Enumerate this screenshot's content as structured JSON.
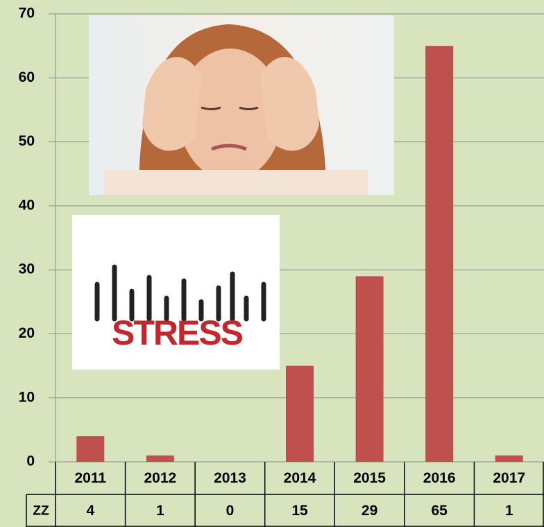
{
  "chart_data": {
    "type": "bar",
    "categories": [
      "2011",
      "2012",
      "2013",
      "2014",
      "2015",
      "2016",
      "2017"
    ],
    "series": [
      {
        "name": "ZZ",
        "color": "#c0504d",
        "values": [
          4,
          1,
          0,
          15,
          29,
          65,
          1
        ]
      }
    ],
    "ylim": [
      0,
      70
    ],
    "yticks": [
      0,
      10,
      20,
      30,
      40,
      50,
      60,
      70
    ],
    "grid": true,
    "annotations": [
      "STRESS"
    ]
  }
}
